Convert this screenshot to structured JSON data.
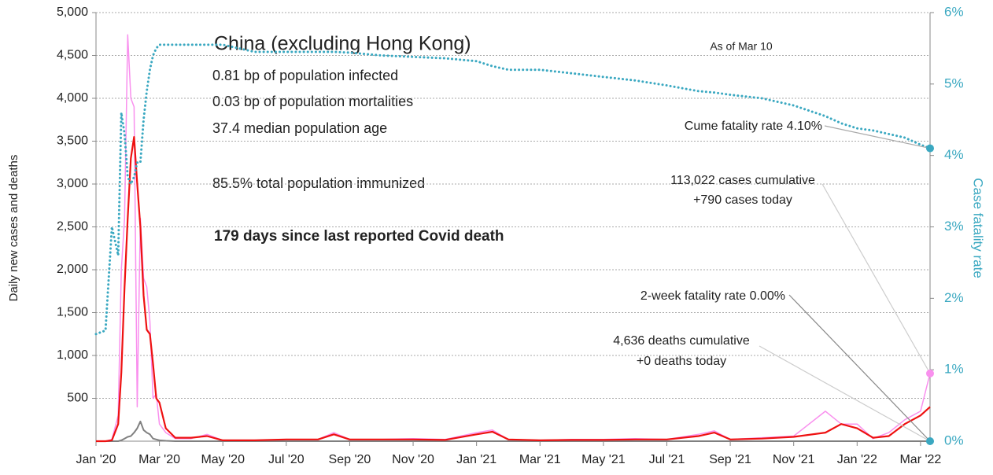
{
  "chart_data": {
    "type": "line",
    "title": "China (excluding Hong Kong)",
    "notes": [
      "0.81 bp of population infected",
      "0.03 bp of population mortalities",
      "37.4 median population age",
      "85.5% total population immunized"
    ],
    "highlight": "179 days since last reported Covid death",
    "as_of": "As of Mar 10",
    "ylabel": "Daily new cases and deaths",
    "y2label": "Case fatality rate",
    "callouts": [
      "Cume fatality rate 4.10%",
      "113,022 cases cumulative",
      "+790 cases today",
      "2-week fatality rate 0.00%",
      "4,636 deaths cumulative",
      "+0 deaths today"
    ],
    "x": [
      0,
      0.3,
      0.5,
      0.7,
      0.8,
      0.9,
      1.0,
      1.1,
      1.2,
      1.3,
      1.4,
      1.5,
      1.6,
      1.7,
      1.8,
      1.9,
      2.0,
      2.2,
      2.5,
      3,
      3.5,
      4,
      5,
      6,
      7,
      7.5,
      8,
      9,
      10,
      11,
      12,
      12.5,
      13,
      14,
      15,
      16,
      17,
      18,
      19,
      19.5,
      20,
      21,
      22,
      23,
      23.5,
      24,
      24.5,
      25,
      25.5,
      26,
      26.3
    ],
    "xlim": [
      0,
      26.3
    ],
    "xticks": [
      {
        "value": 0,
        "label": "Jan '20"
      },
      {
        "value": 2,
        "label": "Mar '20"
      },
      {
        "value": 4,
        "label": "May '20"
      },
      {
        "value": 6,
        "label": "Jul '20"
      },
      {
        "value": 8,
        "label": "Sep '20"
      },
      {
        "value": 10,
        "label": "Nov '20"
      },
      {
        "value": 12,
        "label": "Jan '21"
      },
      {
        "value": 14,
        "label": "Mar '21"
      },
      {
        "value": 16,
        "label": "May '21"
      },
      {
        "value": 18,
        "label": "Jul '21"
      },
      {
        "value": 20,
        "label": "Sep '21"
      },
      {
        "value": 22,
        "label": "Nov '21"
      },
      {
        "value": 24,
        "label": "Jan '22"
      },
      {
        "value": 26,
        "label": "Mar '22"
      }
    ],
    "ylim": [
      0,
      5000
    ],
    "yticks": [
      {
        "value": 500,
        "label": "500"
      },
      {
        "value": 1000,
        "label": "1,000"
      },
      {
        "value": 1500,
        "label": "1,500"
      },
      {
        "value": 2000,
        "label": "2,000"
      },
      {
        "value": 2500,
        "label": "2,500"
      },
      {
        "value": 3000,
        "label": "3,000"
      },
      {
        "value": 3500,
        "label": "3,500"
      },
      {
        "value": 4000,
        "label": "4,000"
      },
      {
        "value": 4500,
        "label": "4,500"
      },
      {
        "value": 5000,
        "label": "5,000"
      }
    ],
    "y2lim": [
      0,
      6
    ],
    "y2ticks": [
      {
        "value": 0,
        "label": "0%"
      },
      {
        "value": 1,
        "label": "1%"
      },
      {
        "value": 2,
        "label": "2%"
      },
      {
        "value": 3,
        "label": "3%"
      },
      {
        "value": 4,
        "label": "4%"
      },
      {
        "value": 5,
        "label": "5%"
      },
      {
        "value": 6,
        "label": "6%"
      }
    ],
    "grid": true,
    "series": [
      {
        "color": "#f990ee",
        "width": 1.5,
        "values": [
          0,
          0,
          20,
          300,
          2000,
          2600,
          4740,
          4000,
          3900,
          400,
          2600,
          1900,
          1800,
          1400,
          500,
          550,
          200,
          100,
          30,
          30,
          80,
          10,
          10,
          20,
          20,
          100,
          20,
          20,
          30,
          20,
          100,
          130,
          20,
          10,
          20,
          20,
          30,
          20,
          80,
          120,
          20,
          40,
          60,
          350,
          200,
          200,
          30,
          100,
          250,
          350,
          790
        ]
      },
      {
        "color": "#808080",
        "width": 2,
        "values": [
          0,
          0,
          0,
          0,
          10,
          30,
          50,
          60,
          100,
          150,
          230,
          130,
          100,
          80,
          30,
          20,
          10,
          5,
          0,
          0,
          0,
          0,
          0,
          0,
          0,
          0,
          0,
          0,
          0,
          0,
          0,
          0,
          0,
          0,
          0,
          0,
          0,
          0,
          0,
          0,
          0,
          0,
          0,
          0,
          0,
          0,
          0,
          0,
          0,
          0,
          0
        ]
      },
      {
        "color": "#ee1111",
        "width": 2.2,
        "values": [
          0,
          0,
          10,
          200,
          800,
          1800,
          2600,
          3300,
          3550,
          3000,
          2500,
          1700,
          1300,
          1250,
          900,
          500,
          450,
          150,
          40,
          40,
          60,
          10,
          10,
          20,
          20,
          80,
          20,
          20,
          20,
          15,
          80,
          110,
          20,
          10,
          15,
          15,
          20,
          20,
          60,
          100,
          20,
          30,
          50,
          100,
          200,
          150,
          40,
          60,
          200,
          300,
          400
        ]
      },
      {
        "color": "#3aa8c1",
        "width": 3,
        "dotted": true,
        "axis": "y2",
        "values": [
          1.5,
          1.55,
          3.0,
          2.6,
          4.6,
          4.3,
          3.7,
          3.6,
          3.7,
          3.9,
          3.9,
          4.5,
          4.9,
          5.2,
          5.4,
          5.5,
          5.55,
          5.55,
          5.55,
          5.55,
          5.55,
          5.55,
          5.45,
          5.45,
          5.45,
          5.45,
          5.44,
          5.4,
          5.38,
          5.36,
          5.32,
          5.25,
          5.2,
          5.2,
          5.15,
          5.1,
          5.05,
          4.98,
          4.9,
          4.88,
          4.85,
          4.8,
          4.7,
          4.55,
          4.45,
          4.38,
          4.35,
          4.3,
          4.25,
          4.15,
          4.1
        ]
      }
    ]
  }
}
